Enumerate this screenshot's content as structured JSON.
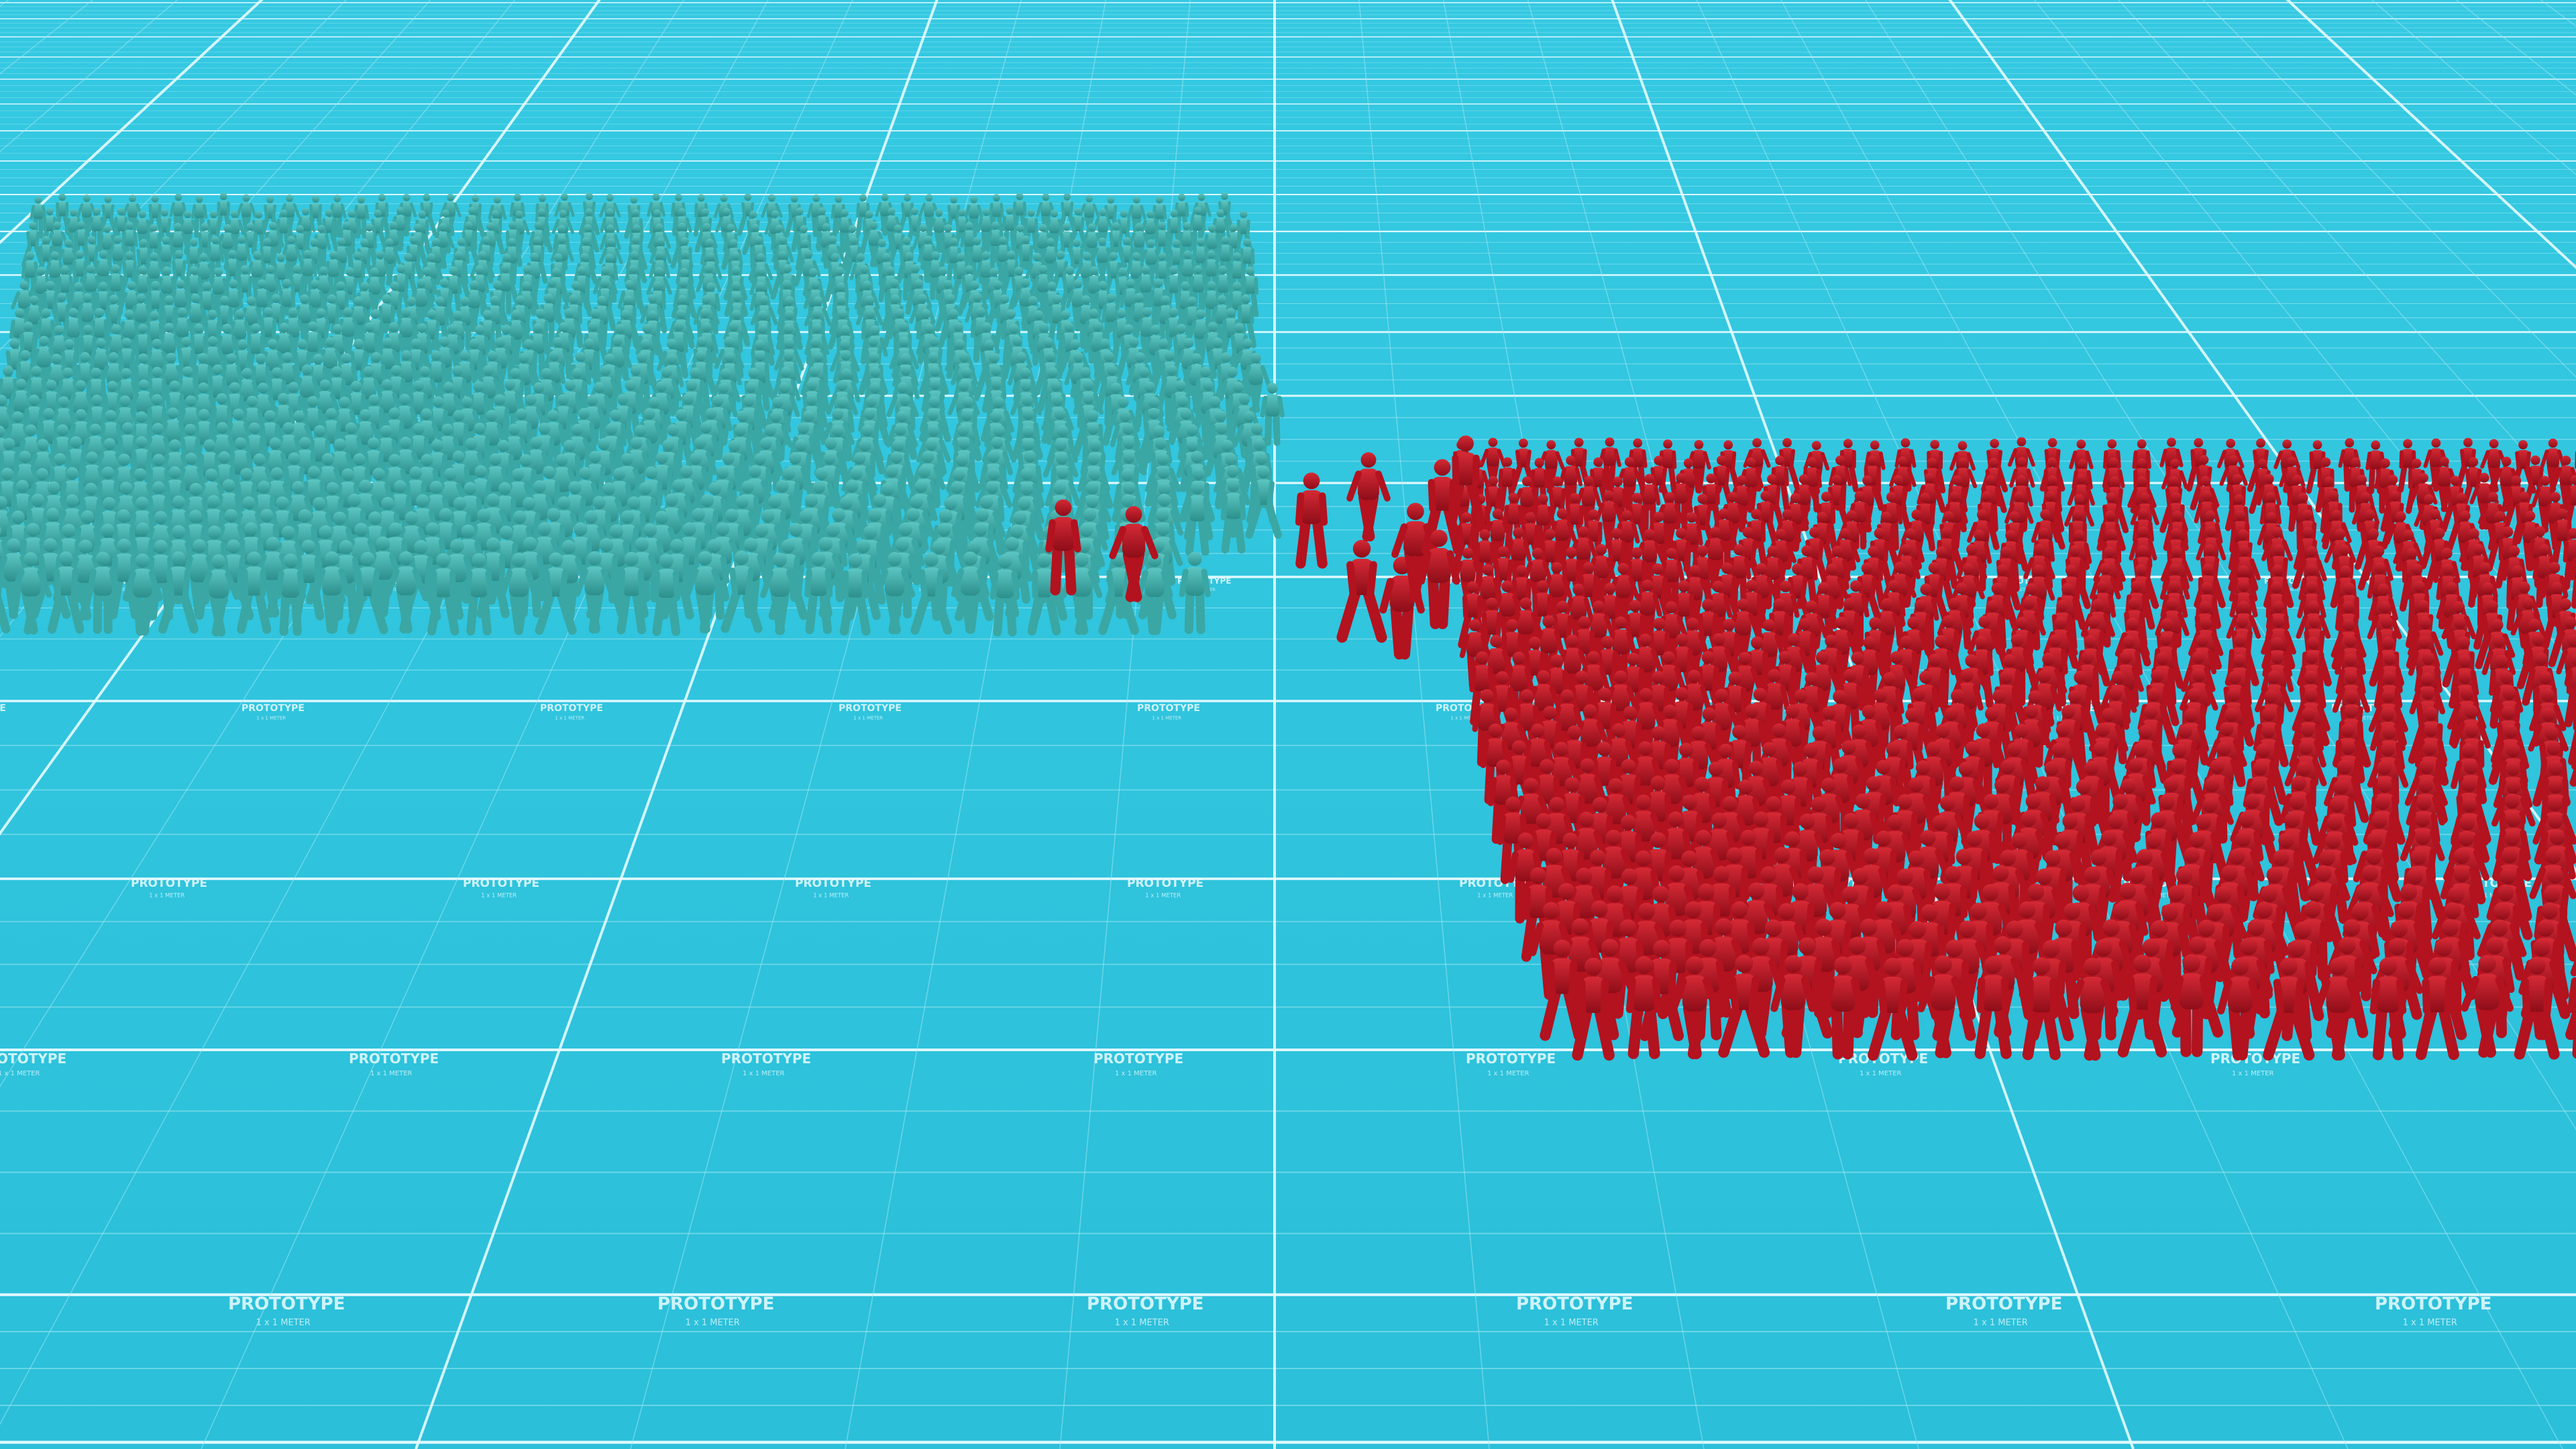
{
  "scene": {
    "floor_label": "PROTOTYPE",
    "floor_sub_label": "1 x 1 METER"
  },
  "teams": {
    "teal": {
      "color": "#3aa7a4"
    },
    "red": {
      "color": "#b3121f"
    }
  },
  "palette": {
    "floor_top": "#35c9e2",
    "floor_bottom": "#2bbfd9",
    "grid_line": "#e6fbff",
    "grid_line_faint": "#9fe7f3"
  }
}
